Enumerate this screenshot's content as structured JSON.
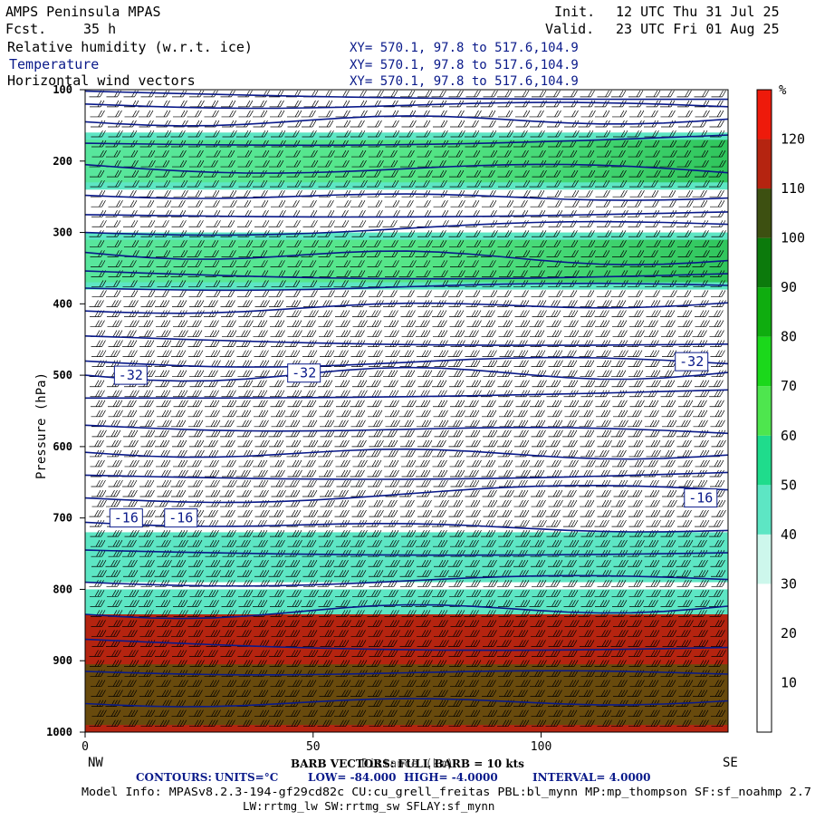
{
  "header": {
    "model": "AMPS Peninsula MPAS",
    "fcst_label": "Fcst.",
    "fcst_value": "35 h",
    "init_label": "Init.",
    "init_value": "12 UTC Thu 31 Jul 25",
    "valid_label": "Valid.",
    "valid_value": "23 UTC Fri 01 Aug 25"
  },
  "fields": [
    {
      "label": "Relative humidity (w.r.t. ice)",
      "xy": "XY= 570.1, 97.8 to 517.6,104.9",
      "color": "#000000"
    },
    {
      "label": "Temperature",
      "xy": "XY= 570.1, 97.8 to 517.6,104.9",
      "color": "#0a1a8a"
    },
    {
      "label": "Horizontal wind vectors",
      "xy": "XY= 570.1, 97.8 to 517.6,104.9",
      "color": "#000000"
    }
  ],
  "chart_data": {
    "type": "heatmap",
    "ylabel": "Pressure (hPa)",
    "xlabel": "Distance (km)",
    "xlim": [
      0,
      141
    ],
    "ylim": [
      1000,
      100
    ],
    "x_ticks": [
      0,
      50,
      100
    ],
    "y_ticks": [
      100,
      200,
      300,
      400,
      500,
      600,
      700,
      800,
      900,
      1000
    ],
    "x_end_labels": {
      "left": "NW",
      "right": "SE"
    },
    "colorbar": {
      "unit": "%",
      "levels": [
        10,
        20,
        30,
        40,
        50,
        60,
        70,
        80,
        90,
        100,
        110,
        120
      ],
      "colors": [
        "#ffffff",
        "#ffffff",
        "#ffffff",
        "#cdf7ec",
        "#5de6c4",
        "#1fdc8c",
        "#4ee64e",
        "#1bd81b",
        "#0fad0f",
        "#0c7a0c",
        "#3d5011",
        "#b52410",
        "#ee1a0b"
      ]
    },
    "rh_bands": [
      {
        "p_top": 830,
        "p_bot": 1000,
        "level": 110
      },
      {
        "p_top": 800,
        "p_bot": 835,
        "level": 40
      },
      {
        "p_top": 720,
        "p_bot": 790,
        "level": 40
      },
      {
        "p_top": 300,
        "p_bot": 380,
        "level": 40
      },
      {
        "p_top": 160,
        "p_bot": 240,
        "level": 40
      }
    ],
    "temperature_contours": {
      "units": "°C",
      "low": -84.0,
      "high": -4.0,
      "interval": 4.0,
      "labels": [
        {
          "value": "-32",
          "x": 10,
          "p": 500
        },
        {
          "value": "-32",
          "x": 48,
          "p": 497
        },
        {
          "value": "-32",
          "x": 133,
          "p": 481
        },
        {
          "value": "-16",
          "x": 9,
          "p": 700
        },
        {
          "value": "-16",
          "x": 21,
          "p": 700
        },
        {
          "value": "-16",
          "x": 135,
          "p": 672
        }
      ]
    },
    "barb_note": "BARB VECTORS: FULL BARB = 10 kts"
  },
  "footer": {
    "contours_line": {
      "label": "CONTOURS:",
      "units": "UNITS=°C",
      "low": "LOW= -84.000",
      "high": "HIGH= -4.0000",
      "interval": "INTERVAL= 4.0000"
    },
    "model_info": "Model Info: MPASv8.2.3-194-gf29cd82c CU:cu_grell_freitas PBL:bl_mynn MP:mp_thompson SF:sf_noahmp 2.7",
    "model_info_2": "LW:rrtmg_lw SW:rrtmg_sw SFLAY:sf_mynn"
  }
}
